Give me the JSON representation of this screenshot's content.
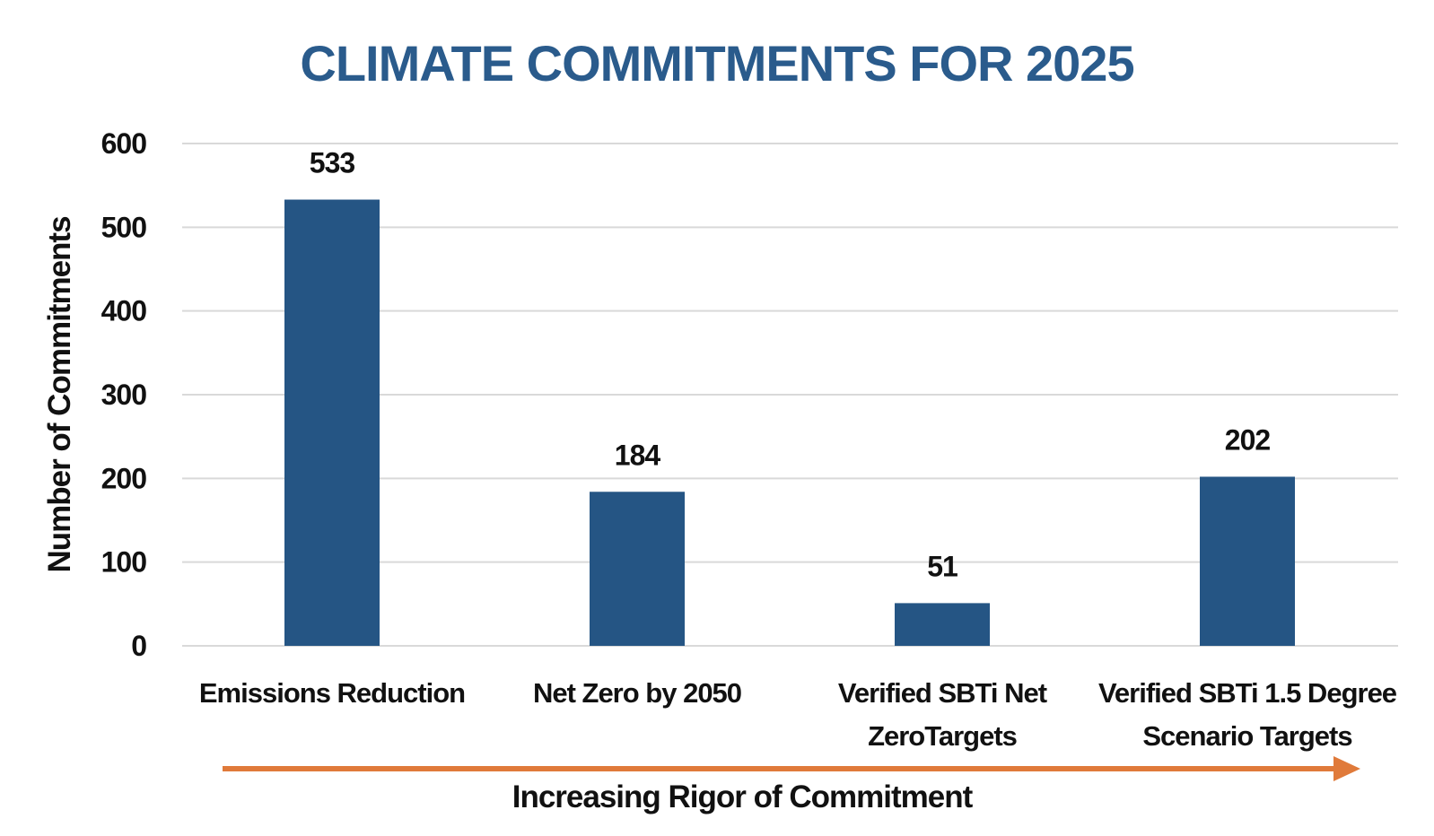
{
  "chart_data": {
    "type": "bar",
    "title": "CLIMATE COMMITMENTS FOR 2025",
    "categories": [
      [
        "Emissions Reduction"
      ],
      [
        "Net Zero by 2050"
      ],
      [
        "Verified SBTi Net",
        "ZeroTargets"
      ],
      [
        "Verified SBTi 1.5 Degree",
        "Scenario Targets"
      ]
    ],
    "values": [
      533,
      184,
      51,
      202
    ],
    "ylabel": "Number of Commitments",
    "xlabel": "Increasing Rigor of Commitment",
    "ylim": [
      0,
      600
    ],
    "yticks": [
      0,
      100,
      200,
      300,
      400,
      500,
      600
    ],
    "grid": true,
    "data_labels": true,
    "colors": {
      "bar": "#255584",
      "title": "#2a5b8c",
      "arrow": "#e07a3a",
      "grid": "#d9d9d9"
    }
  }
}
